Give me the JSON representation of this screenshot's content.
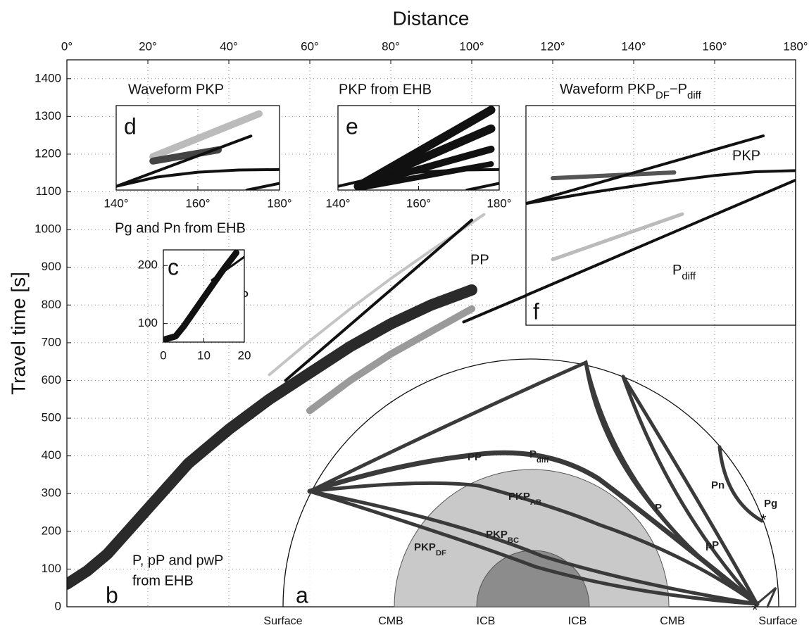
{
  "chart_data": [
    {
      "type": "line",
      "title": "Distance",
      "ylabel": "Travel time [s]",
      "xlim": [
        0,
        180
      ],
      "ylim": [
        0,
        1450
      ],
      "xticks": [
        {
          "value": 0,
          "label": "0°"
        },
        {
          "value": 20,
          "label": "20°"
        },
        {
          "value": 40,
          "label": "40°"
        },
        {
          "value": 60,
          "label": "60°"
        },
        {
          "value": 80,
          "label": "80°"
        },
        {
          "value": 100,
          "label": "100°"
        },
        {
          "value": 120,
          "label": "120°"
        },
        {
          "value": 140,
          "label": "140°"
        },
        {
          "value": 160,
          "label": "160°"
        },
        {
          "value": 180,
          "label": "180°"
        }
      ],
      "yticks": [
        0,
        100,
        200,
        300,
        400,
        500,
        600,
        700,
        800,
        900,
        1000,
        1100,
        1200,
        1300,
        1400
      ],
      "grid": true,
      "x_axis_side": "top",
      "series": [
        {
          "color": "#2a2a2a",
          "width": 16,
          "x": [
            0,
            5,
            10,
            15,
            20,
            30,
            40,
            50,
            60,
            70,
            80,
            90,
            100
          ],
          "values": [
            60,
            95,
            140,
            200,
            260,
            380,
            470,
            550,
            620,
            690,
            750,
            800,
            840
          ]
        },
        {
          "color": "#9a9a9a",
          "width": 10,
          "x": [
            60,
            70,
            80,
            90,
            100
          ],
          "values": [
            520,
            600,
            670,
            730,
            790
          ]
        },
        {
          "color": "#c4c4c4",
          "width": 4,
          "x": [
            50,
            60,
            70,
            80,
            90,
            103
          ],
          "values": [
            615,
            705,
            790,
            870,
            945,
            1040
          ]
        },
        {
          "color": "#111111",
          "width": 4,
          "x": [
            54,
            100
          ],
          "values": [
            600,
            1025
          ]
        },
        {
          "color": "#111111",
          "width": 4,
          "x": [
            98,
            113.4
          ],
          "values": [
            755,
            825
          ]
        }
      ],
      "annotations": [
        "PP",
        "P",
        "P, pP and pwP",
        "from EHB",
        "b"
      ]
    },
    {
      "type": "line",
      "title": "Pg and Pn from EHB",
      "xlim": [
        0,
        20
      ],
      "ylim": [
        68,
        227
      ],
      "xticks": [
        0,
        10,
        20
      ],
      "yticks": [
        100,
        200
      ],
      "grid": true,
      "series": [
        {
          "color": "#111111",
          "width": 9,
          "x": [
            0,
            3,
            5,
            10,
            15,
            18
          ],
          "values": [
            72,
            78,
            95,
            145,
            195,
            222
          ]
        },
        {
          "color": "#111111",
          "width": 3,
          "x": [
            12,
            20
          ],
          "values": [
            175,
            215
          ]
        }
      ],
      "annotations": [
        "c"
      ]
    },
    {
      "type": "line",
      "title": "Waveform PKP",
      "xlim": [
        140,
        180
      ],
      "ylim": [
        1100,
        1327
      ],
      "xticks": [
        {
          "value": 140,
          "label": "140°"
        },
        {
          "value": 160,
          "label": "160°"
        },
        {
          "value": 180,
          "label": "180°"
        }
      ],
      "grid": true,
      "series": [
        {
          "color": "#bbbbbb",
          "width": 10,
          "x": [
            149,
            175
          ],
          "values": [
            1190,
            1305
          ]
        },
        {
          "color": "#444444",
          "width": 10,
          "x": [
            149,
            165
          ],
          "values": [
            1178,
            1208
          ]
        },
        {
          "color": "#111111",
          "width": 4,
          "x": [
            140,
            173
          ],
          "values": [
            1110,
            1245
          ]
        },
        {
          "color": "#111111",
          "width": 4,
          "x": [
            140,
            150,
            160,
            170,
            180
          ],
          "values": [
            1110,
            1135,
            1148,
            1154,
            1155
          ]
        },
        {
          "color": "#111111",
          "width": 4,
          "x": [
            172,
            180
          ],
          "values": [
            1100,
            1118
          ]
        }
      ],
      "annotations": [
        "d"
      ]
    },
    {
      "type": "line",
      "title": "PKP from EHB",
      "xlim": [
        140,
        180
      ],
      "ylim": [
        1100,
        1327
      ],
      "xticks": [
        {
          "value": 140,
          "label": "140°"
        },
        {
          "value": 160,
          "label": "160°"
        },
        {
          "value": 180,
          "label": "180°"
        }
      ],
      "grid": true,
      "series": [
        {
          "color": "#111111",
          "width": 12,
          "x": [
            145,
            178
          ],
          "values": [
            1110,
            1315
          ]
        },
        {
          "color": "#111111",
          "width": 12,
          "x": [
            145,
            178
          ],
          "values": [
            1110,
            1265
          ]
        },
        {
          "color": "#111111",
          "width": 10,
          "x": [
            145,
            178
          ],
          "values": [
            1110,
            1210
          ]
        },
        {
          "color": "#111111",
          "width": 8,
          "x": [
            145,
            178
          ],
          "values": [
            1105,
            1170
          ]
        },
        {
          "color": "#111111",
          "width": 4,
          "x": [
            140,
            150,
            160,
            170,
            180
          ],
          "values": [
            1110,
            1135,
            1148,
            1154,
            1155
          ]
        },
        {
          "color": "#111111",
          "width": 4,
          "x": [
            172,
            180
          ],
          "values": [
            1100,
            1118
          ]
        }
      ],
      "annotations": [
        "e"
      ]
    },
    {
      "type": "line",
      "title": [
        "Waveform PKP",
        "DF",
        "−P",
        "diff"
      ],
      "xlim": [
        113.4,
        180
      ],
      "ylim": [
        746,
        1327
      ],
      "series": [
        {
          "color": "#555555",
          "width": 6,
          "x": [
            120,
            150
          ],
          "values": [
            1135,
            1150
          ]
        },
        {
          "color": "#bbbbbb",
          "width": 5,
          "x": [
            120,
            152
          ],
          "values": [
            920,
            1040
          ]
        },
        {
          "color": "#111111",
          "width": 4,
          "x": [
            113.4,
            172
          ],
          "values": [
            1068,
            1247
          ]
        },
        {
          "color": "#111111",
          "width": 4,
          "x": [
            113.4,
            130,
            145,
            160,
            170,
            180
          ],
          "values": [
            1068,
            1098,
            1122,
            1142,
            1152,
            1155
          ]
        },
        {
          "color": "#111111",
          "width": 4,
          "x": [
            113.4,
            180
          ],
          "values": [
            825,
            1130
          ]
        }
      ],
      "annotations": [
        "PKP",
        [
          "P",
          "diff"
        ],
        "f"
      ]
    }
  ],
  "diagram": {
    "label": "a",
    "surface_labels": [
      "Surface",
      "CMB",
      "ICB",
      "ICB",
      "CMB",
      "Surface"
    ],
    "rays": [
      "PP",
      [
        "P",
        "diff"
      ],
      [
        "PKP",
        "AB"
      ],
      [
        "PKP",
        "BC"
      ],
      [
        "PKP",
        "DF"
      ],
      "P",
      "Pn",
      "pP",
      "Pg"
    ]
  }
}
